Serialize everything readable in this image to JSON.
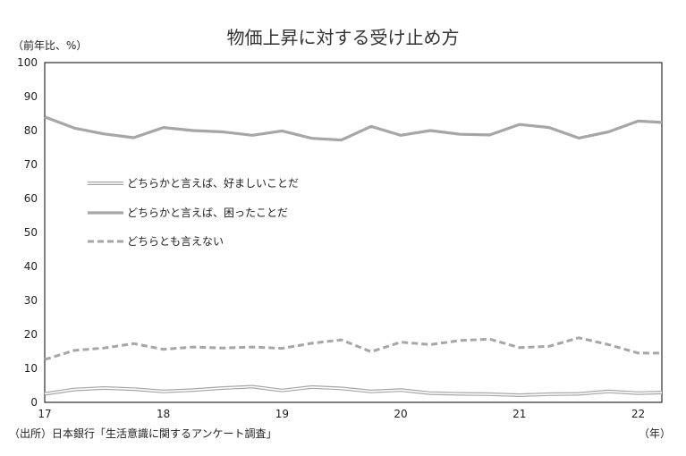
{
  "chart_data": {
    "type": "line",
    "title": "物価上昇に対する受け止め方",
    "ylabel": "（前年比、%）",
    "xlabel": "（年）",
    "ylim": [
      0,
      100
    ],
    "yticks": [
      0,
      10,
      20,
      30,
      40,
      50,
      60,
      70,
      80,
      90,
      100
    ],
    "xlim": [
      2017.0,
      2022.2
    ],
    "xticks": [
      {
        "label": "17",
        "value": 2017.0
      },
      {
        "label": "18",
        "value": 2018.0
      },
      {
        "label": "19",
        "value": 2019.0
      },
      {
        "label": "20",
        "value": 2020.0
      },
      {
        "label": "21",
        "value": 2021.0
      },
      {
        "label": "22",
        "value": 2022.0
      }
    ],
    "x": [
      2017.0,
      2017.25,
      2017.5,
      2017.75,
      2018.0,
      2018.25,
      2018.5,
      2018.75,
      2019.0,
      2019.25,
      2019.5,
      2019.75,
      2020.0,
      2020.25,
      2020.5,
      2020.75,
      2021.0,
      2021.25,
      2021.5,
      2021.75,
      2022.0,
      2022.2
    ],
    "series": [
      {
        "name": "どちらかと言えば、好ましいことだ",
        "style": "double",
        "color": "#a6a6a6",
        "values": [
          2.5,
          3.8,
          4.2,
          3.9,
          3.2,
          3.6,
          4.2,
          4.6,
          3.5,
          4.5,
          4.1,
          3.2,
          3.6,
          2.7,
          2.5,
          2.4,
          2.1,
          2.4,
          2.5,
          3.2,
          2.7,
          2.9
        ]
      },
      {
        "name": "どちらかと言えば、困ったことだ",
        "style": "solid",
        "color": "#a6a6a6",
        "values": [
          84.0,
          80.7,
          79.0,
          77.9,
          80.9,
          80.0,
          79.6,
          78.6,
          79.9,
          77.7,
          77.2,
          81.2,
          78.6,
          80.0,
          78.9,
          78.7,
          81.8,
          80.9,
          77.8,
          79.6,
          82.8,
          82.4
        ]
      },
      {
        "name": "どちらとも言えない",
        "style": "dashed",
        "color": "#a6a6a6",
        "values": [
          12.6,
          15.3,
          16.0,
          17.3,
          15.6,
          16.3,
          16.0,
          16.3,
          15.9,
          17.4,
          18.4,
          14.9,
          17.7,
          17.0,
          18.2,
          18.6,
          16.1,
          16.5,
          19.0,
          17.0,
          14.5,
          14.5
        ]
      }
    ],
    "legend_position": "left-middle",
    "grid": false
  },
  "labels": {
    "source": "（出所）日本銀行「生活意識に関するアンケート調査」"
  }
}
